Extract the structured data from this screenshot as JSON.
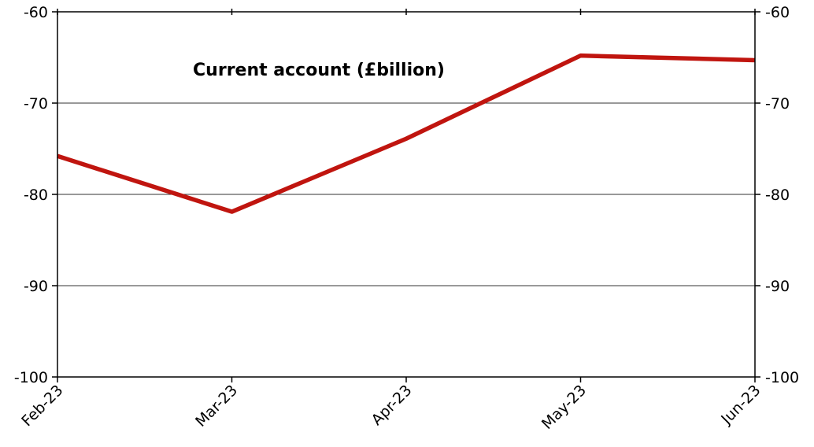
{
  "chart_data": {
    "type": "line",
    "title": "",
    "xlabel": "",
    "ylabel": "",
    "annotation": "Current account (£billion)",
    "categories": [
      "Feb-23",
      "Mar-23",
      "Apr-23",
      "May-23",
      "Jun-23"
    ],
    "series": [
      {
        "values": [
          -75.8,
          -81.9,
          -73.9,
          -64.8,
          -65.3
        ],
        "color": "#c0150f"
      }
    ],
    "ylim": [
      -100,
      -60
    ],
    "yticks": [
      -60,
      -70,
      -80,
      -90,
      -100
    ],
    "y_axis_sides": [
      "left",
      "right"
    ],
    "grid": true,
    "legend": "none"
  }
}
